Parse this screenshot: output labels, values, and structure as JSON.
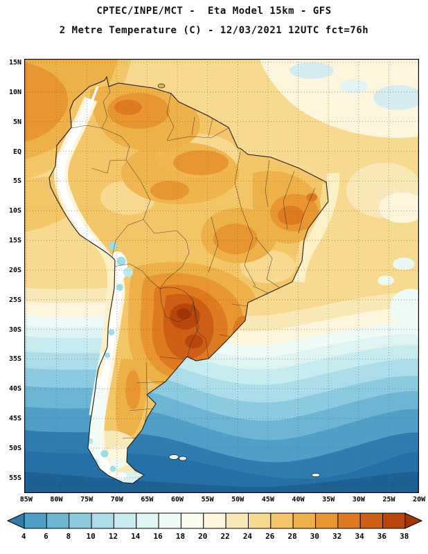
{
  "header": {
    "line1": "CPTEC/INPE/MCT -  Eta Model 15km - GFS",
    "line2": "2 Metre Temperature (C) - 12/03/2021 12UTC fct=76h"
  },
  "axes": {
    "lat_labels": [
      "15N",
      "10N",
      "5N",
      "EQ",
      "5S",
      "10S",
      "15S",
      "20S",
      "25S",
      "30S",
      "35S",
      "40S",
      "45S",
      "50S",
      "55S"
    ],
    "lon_labels": [
      "85W",
      "80W",
      "75W",
      "70W",
      "65W",
      "60W",
      "55W",
      "50W",
      "45W",
      "40W",
      "35W",
      "30W",
      "25W",
      "20W"
    ]
  },
  "colorbar": {
    "tick_labels": [
      "4",
      "6",
      "8",
      "10",
      "12",
      "14",
      "16",
      "18",
      "20",
      "22",
      "24",
      "26",
      "28",
      "30",
      "32",
      "34",
      "36",
      "38"
    ],
    "colors": [
      "#2e7cb0",
      "#4f9fc6",
      "#6cb6d3",
      "#8ccbdf",
      "#abdce8",
      "#c7ecef",
      "#ddf4f2",
      "#edfaf6",
      "#f9fdf0",
      "#fdf6dd",
      "#fae9b8",
      "#f7da90",
      "#f3c768",
      "#eeb14a",
      "#e89632",
      "#dd7a22",
      "#cd5f15",
      "#b9470c",
      "#a23406"
    ]
  }
}
